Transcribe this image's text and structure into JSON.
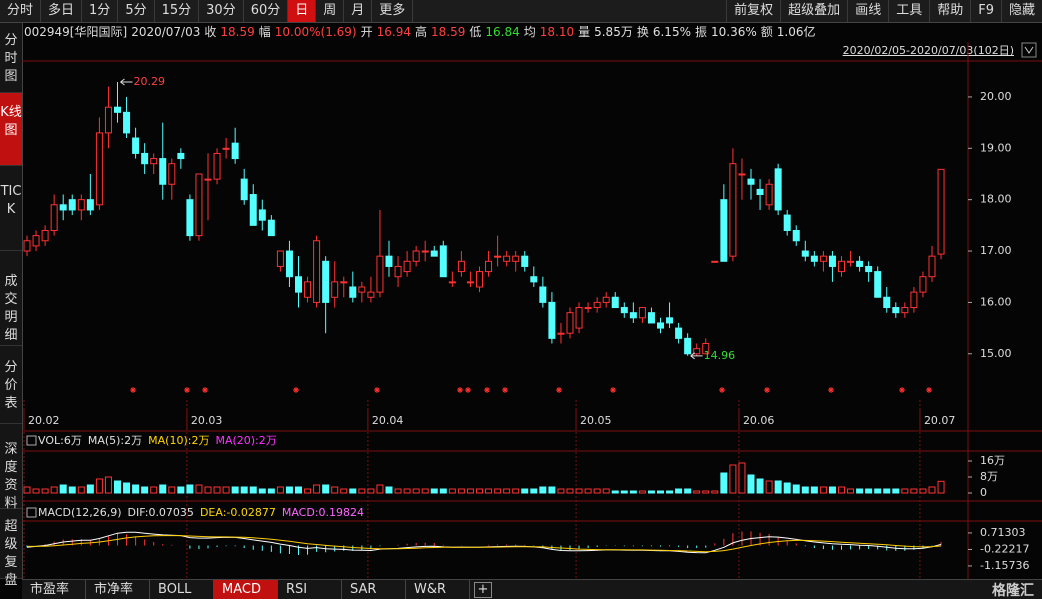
{
  "toolbar": {
    "left": [
      "分时",
      "多日",
      "1分",
      "5分",
      "15分",
      "30分",
      "60分",
      "日",
      "周",
      "月",
      "更多"
    ],
    "active": 7,
    "right": [
      "前复权",
      "超级叠加",
      "画线",
      "工具",
      "帮助",
      "F9",
      "隐藏"
    ]
  },
  "info": {
    "code": "002949[华阳国际]",
    "date": "2020/07/03",
    "fields": [
      {
        "label": "收",
        "value": "18.59",
        "color": "#ff4040"
      },
      {
        "label": "幅",
        "value": "10.00%(1.69)",
        "color": "#ff4040"
      },
      {
        "label": "开",
        "value": "16.94",
        "color": "#ff4040"
      },
      {
        "label": "高",
        "value": "18.59",
        "color": "#ff4040"
      },
      {
        "label": "低",
        "value": "16.84",
        "color": "#33dd33"
      },
      {
        "label": "均",
        "value": "18.10",
        "color": "#ff4040"
      },
      {
        "label": "量",
        "value": "5.85万",
        "color": "#e0e0e0"
      },
      {
        "label": "换",
        "value": "6.15%",
        "color": "#e0e0e0"
      },
      {
        "label": "振",
        "value": "10.36%",
        "color": "#e0e0e0"
      },
      {
        "label": "额",
        "value": "1.06亿",
        "color": "#e0e0e0"
      }
    ]
  },
  "range": "2020/02/05-2020/07/03(102日)",
  "sidebar": [
    "分时图",
    "K线图",
    "TICK",
    "成交明细",
    "分价表",
    "深度资料",
    "超级复盘"
  ],
  "sidebar_active": 1,
  "tabs": [
    "市盈率",
    "市净率",
    "BOLL",
    "MACD",
    "RSI",
    "SAR",
    "W&R",
    "+"
  ],
  "tabs_active": 3,
  "logo": "格隆汇",
  "chart_data": [
    {
      "type": "candlestick",
      "up_color": "#ff3232",
      "down_color": "#54ffff",
      "ohlc": [
        [
          17.0,
          17.3,
          16.9,
          17.2
        ],
        [
          17.1,
          17.4,
          17.0,
          17.3
        ],
        [
          17.2,
          17.5,
          17.1,
          17.4
        ],
        [
          17.4,
          18.1,
          17.3,
          17.9
        ],
        [
          17.9,
          18.1,
          17.6,
          17.8
        ],
        [
          18.0,
          18.1,
          17.7,
          17.8
        ],
        [
          17.8,
          18.1,
          17.6,
          18.0
        ],
        [
          18.0,
          18.5,
          17.7,
          17.8
        ],
        [
          17.9,
          19.6,
          17.8,
          19.3
        ],
        [
          19.3,
          20.2,
          19.0,
          19.8
        ],
        [
          19.8,
          20.29,
          19.5,
          19.7
        ],
        [
          19.7,
          20.0,
          19.2,
          19.3
        ],
        [
          19.2,
          19.4,
          18.8,
          18.9
        ],
        [
          18.9,
          19.1,
          18.5,
          18.7
        ],
        [
          18.7,
          18.9,
          18.5,
          18.8
        ],
        [
          18.8,
          19.5,
          18.0,
          18.3
        ],
        [
          18.3,
          18.8,
          18.0,
          18.7
        ],
        [
          18.9,
          19.0,
          18.6,
          18.8
        ],
        [
          18.0,
          18.1,
          17.2,
          17.3
        ],
        [
          17.3,
          18.5,
          17.2,
          18.5
        ],
        [
          18.4,
          18.9,
          17.6,
          18.4
        ],
        [
          18.4,
          19.0,
          18.3,
          18.9
        ],
        [
          19.0,
          19.2,
          18.8,
          19.0
        ],
        [
          19.1,
          19.4,
          18.7,
          18.8
        ],
        [
          18.4,
          18.6,
          17.9,
          18.0
        ],
        [
          18.1,
          18.3,
          17.5,
          17.5
        ],
        [
          17.8,
          18.0,
          17.4,
          17.6
        ],
        [
          17.6,
          17.7,
          17.3,
          17.3
        ],
        [
          16.7,
          17.0,
          16.6,
          17.0
        ],
        [
          17.0,
          17.2,
          16.3,
          16.5
        ],
        [
          16.5,
          16.9,
          15.9,
          16.2
        ],
        [
          16.1,
          16.5,
          16.0,
          16.4
        ],
        [
          16.0,
          17.3,
          15.9,
          17.2
        ],
        [
          16.8,
          16.9,
          15.4,
          16.0
        ],
        [
          16.1,
          16.8,
          15.9,
          16.4
        ],
        [
          16.4,
          16.5,
          16.1,
          16.4
        ],
        [
          16.3,
          16.6,
          16.0,
          16.1
        ],
        [
          16.2,
          16.4,
          16.0,
          16.3
        ],
        [
          16.1,
          16.5,
          16.0,
          16.2
        ],
        [
          16.2,
          17.8,
          16.1,
          16.9
        ],
        [
          16.9,
          17.2,
          16.5,
          16.7
        ],
        [
          16.5,
          16.9,
          16.3,
          16.7
        ],
        [
          16.6,
          17.0,
          16.5,
          16.8
        ],
        [
          16.8,
          17.1,
          16.7,
          17.0
        ],
        [
          17.0,
          17.2,
          16.8,
          17.0
        ],
        [
          17.0,
          17.1,
          16.9,
          16.9
        ],
        [
          17.1,
          17.2,
          16.5,
          16.5
        ],
        [
          16.4,
          16.6,
          16.3,
          16.4
        ],
        [
          16.6,
          17.0,
          16.5,
          16.8
        ],
        [
          16.4,
          16.6,
          16.3,
          16.4
        ],
        [
          16.3,
          16.7,
          16.2,
          16.6
        ],
        [
          16.6,
          17.0,
          16.5,
          16.8
        ],
        [
          16.9,
          17.3,
          16.7,
          16.9
        ],
        [
          16.8,
          17.0,
          16.7,
          16.9
        ],
        [
          16.8,
          17.0,
          16.6,
          16.9
        ],
        [
          16.9,
          17.0,
          16.6,
          16.7
        ],
        [
          16.5,
          16.7,
          16.3,
          16.4
        ],
        [
          16.3,
          16.5,
          15.9,
          16.0
        ],
        [
          16.0,
          16.2,
          15.2,
          15.3
        ],
        [
          15.4,
          15.6,
          15.2,
          15.4
        ],
        [
          15.4,
          15.9,
          15.3,
          15.8
        ],
        [
          15.5,
          16.0,
          15.4,
          15.9
        ],
        [
          15.9,
          16.0,
          15.8,
          15.9
        ],
        [
          15.9,
          16.1,
          15.8,
          16.0
        ],
        [
          16.0,
          16.2,
          15.9,
          16.1
        ],
        [
          16.1,
          16.2,
          15.9,
          15.9
        ],
        [
          15.9,
          16.0,
          15.7,
          15.8
        ],
        [
          15.8,
          16.0,
          15.6,
          15.7
        ],
        [
          15.7,
          15.9,
          15.6,
          15.9
        ],
        [
          15.8,
          15.9,
          15.6,
          15.6
        ],
        [
          15.6,
          15.7,
          15.4,
          15.5
        ],
        [
          15.7,
          16.0,
          15.5,
          15.6
        ],
        [
          15.5,
          15.6,
          15.2,
          15.3
        ],
        [
          15.3,
          15.4,
          14.96,
          15.0
        ],
        [
          15.0,
          15.2,
          14.96,
          15.1
        ],
        [
          15.0,
          15.3,
          15.0,
          15.2
        ],
        [
          16.8,
          16.8,
          16.8,
          16.8
        ],
        [
          18.0,
          18.3,
          16.8,
          16.8
        ],
        [
          16.9,
          19.0,
          16.8,
          18.7
        ],
        [
          18.5,
          18.8,
          18.0,
          18.5
        ],
        [
          18.4,
          18.6,
          18.0,
          18.3
        ],
        [
          18.2,
          18.4,
          17.8,
          18.1
        ],
        [
          17.9,
          18.4,
          17.8,
          18.3
        ],
        [
          18.6,
          18.7,
          17.7,
          17.8
        ],
        [
          17.7,
          17.8,
          17.3,
          17.4
        ],
        [
          17.4,
          17.5,
          17.1,
          17.2
        ],
        [
          17.0,
          17.2,
          16.8,
          16.9
        ],
        [
          16.9,
          17.0,
          16.7,
          16.8
        ],
        [
          16.8,
          17.0,
          16.6,
          16.9
        ],
        [
          16.9,
          17.0,
          16.4,
          16.7
        ],
        [
          16.6,
          16.9,
          16.5,
          16.8
        ],
        [
          16.8,
          17.0,
          16.7,
          16.8
        ],
        [
          16.8,
          16.9,
          16.6,
          16.7
        ],
        [
          16.7,
          16.8,
          16.4,
          16.6
        ],
        [
          16.6,
          16.7,
          16.1,
          16.1
        ],
        [
          16.1,
          16.3,
          15.8,
          15.9
        ],
        [
          15.9,
          16.0,
          15.7,
          15.8
        ],
        [
          15.8,
          16.0,
          15.7,
          15.9
        ],
        [
          15.9,
          16.3,
          15.8,
          16.2
        ],
        [
          16.2,
          16.6,
          16.1,
          16.5
        ],
        [
          16.5,
          17.1,
          16.4,
          16.9
        ],
        [
          16.94,
          18.59,
          16.84,
          18.59
        ]
      ],
      "ylim": [
        14.1,
        20.68
      ],
      "yticks": [
        {
          "value": 15,
          "label": "15.00"
        },
        {
          "value": 16,
          "label": "16.00"
        },
        {
          "value": 17,
          "label": "17.00"
        },
        {
          "value": 18,
          "label": "18.00"
        },
        {
          "value": 19,
          "label": "19.00"
        },
        {
          "value": 20,
          "label": "20.00"
        }
      ],
      "date_ticks": [
        {
          "index": 0,
          "label": "20.02"
        },
        {
          "index": 18,
          "label": "20.03"
        },
        {
          "index": 38,
          "label": "20.04"
        },
        {
          "index": 61,
          "label": "20.05"
        },
        {
          "index": 79,
          "label": "20.06"
        },
        {
          "index": 99,
          "label": "20.07"
        }
      ],
      "annotations": [
        {
          "index": 10,
          "value": 20.29,
          "label": "20.29",
          "color": "#ff4040"
        },
        {
          "index": 73,
          "value": 14.96,
          "label": "14.96",
          "color": "#33dd33"
        }
      ]
    },
    {
      "type": "volume",
      "legend": [
        {
          "text": "VOL:6万",
          "color": "#e0e0e0"
        },
        {
          "text": "MA(5):2万",
          "color": "#e0e0e0"
        },
        {
          "text": "MA(10):2万",
          "color": "#ffd700"
        },
        {
          "text": "MA(20):2万",
          "color": "#ff33ff"
        }
      ],
      "values": [
        3,
        2,
        2,
        3,
        4,
        3,
        3,
        4,
        7,
        8,
        6,
        5,
        4,
        3,
        3,
        4,
        3,
        3,
        4,
        4,
        3,
        3,
        3,
        3,
        3,
        3,
        2,
        2,
        3,
        3,
        3,
        2,
        4,
        4,
        3,
        2,
        2,
        2,
        2,
        4,
        3,
        2,
        2,
        2,
        2,
        2,
        2,
        2,
        2,
        2,
        2,
        2,
        2,
        2,
        2,
        2,
        2,
        3,
        3,
        2,
        2,
        2,
        2,
        2,
        2,
        1,
        1,
        1,
        1,
        1,
        1,
        1,
        2,
        2,
        1,
        1,
        1,
        10,
        14,
        15,
        9,
        7,
        6,
        6,
        5,
        4,
        3,
        3,
        3,
        3,
        3,
        2,
        2,
        2,
        2,
        2,
        2,
        2,
        2,
        2,
        3,
        5.85
      ],
      "ylim": [
        0,
        18
      ],
      "yticks": [
        0,
        {
          "value": 8,
          "label": "8万"
        },
        {
          "value": 16,
          "label": "16万"
        }
      ]
    },
    {
      "type": "macd",
      "legend": [
        {
          "text": "MACD(12,26,9)",
          "color": "#e0e0e0"
        },
        {
          "text": "DIF:0.07035",
          "color": "#e0e0e0"
        },
        {
          "text": "DEA:-0.02877",
          "color": "#ffd700"
        },
        {
          "text": "MACD:0.19824",
          "color": "#ff66ff"
        }
      ],
      "dif": [
        -0.1,
        -0.05,
        0,
        0.1,
        0.2,
        0.25,
        0.3,
        0.3,
        0.4,
        0.55,
        0.7,
        0.75,
        0.75,
        0.7,
        0.65,
        0.6,
        0.58,
        0.56,
        0.45,
        0.42,
        0.42,
        0.45,
        0.47,
        0.46,
        0.4,
        0.32,
        0.25,
        0.18,
        0.08,
        0,
        -0.1,
        -0.16,
        -0.12,
        -0.18,
        -0.2,
        -0.22,
        -0.26,
        -0.27,
        -0.28,
        -0.2,
        -0.18,
        -0.16,
        -0.12,
        -0.08,
        -0.05,
        -0.04,
        -0.08,
        -0.1,
        -0.09,
        -0.1,
        -0.1,
        -0.08,
        -0.06,
        -0.05,
        -0.04,
        -0.05,
        -0.08,
        -0.13,
        -0.22,
        -0.28,
        -0.3,
        -0.3,
        -0.29,
        -0.27,
        -0.25,
        -0.25,
        -0.26,
        -0.27,
        -0.27,
        -0.28,
        -0.3,
        -0.3,
        -0.33,
        -0.38,
        -0.4,
        -0.41,
        -0.27,
        -0.1,
        0.15,
        0.3,
        0.4,
        0.45,
        0.5,
        0.48,
        0.42,
        0.35,
        0.27,
        0.2,
        0.15,
        0.1,
        0.07,
        0.05,
        0.02,
        0,
        -0.04,
        -0.1,
        -0.15,
        -0.18,
        -0.18,
        -0.15,
        -0.07,
        0.07035
      ],
      "dea": [
        -0.05,
        -0.05,
        -0.04,
        -0.01,
        0.03,
        0.07,
        0.12,
        0.15,
        0.2,
        0.27,
        0.35,
        0.43,
        0.49,
        0.53,
        0.55,
        0.56,
        0.56,
        0.56,
        0.54,
        0.52,
        0.5,
        0.49,
        0.49,
        0.48,
        0.47,
        0.44,
        0.4,
        0.36,
        0.3,
        0.24,
        0.17,
        0.1,
        0.06,
        0.01,
        -0.03,
        -0.07,
        -0.11,
        -0.14,
        -0.17,
        -0.18,
        -0.18,
        -0.18,
        -0.17,
        -0.15,
        -0.13,
        -0.11,
        -0.1,
        -0.1,
        -0.1,
        -0.1,
        -0.1,
        -0.1,
        -0.09,
        -0.08,
        -0.07,
        -0.07,
        -0.07,
        -0.08,
        -0.11,
        -0.14,
        -0.17,
        -0.2,
        -0.22,
        -0.23,
        -0.24,
        -0.24,
        -0.24,
        -0.25,
        -0.25,
        -0.26,
        -0.27,
        -0.28,
        -0.29,
        -0.31,
        -0.33,
        -0.35,
        -0.33,
        -0.29,
        -0.2,
        -0.1,
        0,
        0.09,
        0.17,
        0.23,
        0.27,
        0.29,
        0.29,
        0.27,
        0.25,
        0.22,
        0.19,
        0.16,
        0.13,
        0.1,
        0.07,
        0.04,
        0,
        -0.03,
        -0.06,
        -0.08,
        -0.06,
        -0.02877
      ],
      "hist": [
        -0.1,
        0,
        0.08,
        0.22,
        0.34,
        0.36,
        0.36,
        0.3,
        0.4,
        0.56,
        0.7,
        0.64,
        0.52,
        0.34,
        0.2,
        0.08,
        0.04,
        0,
        -0.18,
        -0.2,
        -0.16,
        -0.08,
        -0.04,
        -0.04,
        -0.14,
        -0.24,
        -0.3,
        -0.36,
        -0.44,
        -0.48,
        -0.54,
        -0.52,
        -0.36,
        -0.38,
        -0.34,
        -0.3,
        -0.3,
        -0.26,
        -0.22,
        -0.04,
        0,
        0.04,
        0.1,
        0.14,
        0.16,
        0.14,
        0.04,
        0,
        0.02,
        0,
        0,
        0.04,
        0.06,
        0.06,
        0.06,
        0.04,
        -0.02,
        -0.1,
        -0.22,
        -0.28,
        -0.26,
        -0.2,
        -0.14,
        -0.08,
        -0.02,
        -0.02,
        -0.04,
        -0.04,
        -0.04,
        -0.04,
        -0.06,
        -0.04,
        -0.08,
        -0.14,
        -0.14,
        -0.12,
        0.12,
        0.38,
        0.7,
        0.8,
        0.8,
        0.72,
        0.66,
        0.5,
        0.3,
        0.12,
        -0.04,
        -0.14,
        -0.2,
        -0.24,
        -0.24,
        -0.22,
        -0.22,
        -0.2,
        -0.22,
        -0.28,
        -0.3,
        -0.3,
        -0.24,
        -0.14,
        -0.02,
        0.19824
      ],
      "ylim": [
        -1.5,
        1.22
      ],
      "yticks": [
        0.71303,
        -0.22217,
        -1.15736
      ]
    }
  ]
}
